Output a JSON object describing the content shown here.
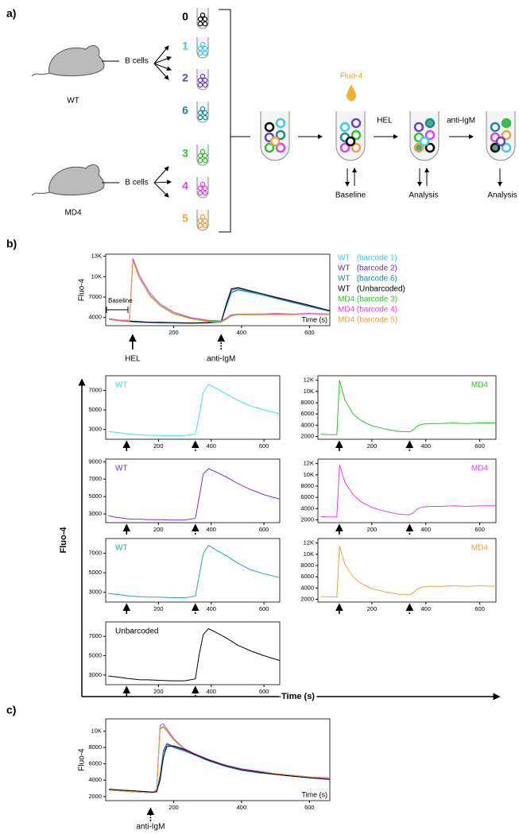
{
  "panel_labels": [
    "a)",
    "b)",
    "c)"
  ],
  "diagram": {
    "mice": [
      {
        "label": "WT",
        "cells": "B cells"
      },
      {
        "label": "MD4",
        "cells": "B cells"
      }
    ],
    "barcodes": [
      {
        "label": "0",
        "color": "#000000"
      },
      {
        "label": "1",
        "color": "#3fc8ee"
      },
      {
        "label": "2",
        "color": "#6a3fc8"
      },
      {
        "label": "6",
        "color": "#1a8a96"
      },
      {
        "label": "3",
        "color": "#2ec22e"
      },
      {
        "label": "4",
        "color": "#e83ee8"
      },
      {
        "label": "5",
        "color": "#f0a040"
      }
    ],
    "dye": "Fluo-4",
    "stimuli": [
      "HEL",
      "anti-IgM"
    ],
    "readouts": [
      "Baseline",
      "Analysis",
      "Analysis"
    ]
  },
  "panel_b_axes": {
    "ylabel": "Fluo-4",
    "xlabel": "Time (s)"
  },
  "chart_data": [
    {
      "type": "line",
      "xlabel": "Time (s)",
      "ylabel": "Fluo-4",
      "annotations": [
        "Baseline",
        "HEL",
        "anti-IgM"
      ],
      "x": [
        10,
        40,
        70,
        80,
        100,
        130,
        160,
        200,
        250,
        300,
        340,
        355,
        370,
        390,
        420,
        460,
        500,
        550,
        600,
        660
      ],
      "xlim": [
        0,
        660
      ],
      "xticks": [
        200,
        400,
        600
      ],
      "ylim": [
        2800,
        13300
      ],
      "yticks": [
        4000,
        7000,
        {
          "value": 10000,
          "label": "10K"
        },
        {
          "value": 13000,
          "label": "13K"
        }
      ],
      "series": [
        {
          "name": "WT   (barcode 1)",
          "color": "#3fc8ee",
          "values": [
            3700,
            3500,
            3400,
            3350,
            3300,
            3250,
            3200,
            3200,
            3150,
            3200,
            3300,
            5500,
            7600,
            8000,
            7700,
            7300,
            6800,
            6200,
            5600,
            4900
          ]
        },
        {
          "name": "WT   (barcode 2)",
          "color": "#6a2fc0",
          "values": [
            3700,
            3500,
            3400,
            3350,
            3300,
            3250,
            3200,
            3200,
            3150,
            3200,
            3300,
            5800,
            8000,
            8300,
            7900,
            7400,
            6900,
            6300,
            5700,
            5000
          ]
        },
        {
          "name": "WT   (barcode 6)",
          "color": "#1a8a96",
          "values": [
            3700,
            3500,
            3450,
            3400,
            3350,
            3300,
            3250,
            3200,
            3200,
            3250,
            3350,
            5600,
            7700,
            8100,
            7800,
            7400,
            6800,
            6200,
            5600,
            4900
          ]
        },
        {
          "name": "WT   (Unbarcoded)",
          "color": "#000000",
          "values": [
            3800,
            3600,
            3500,
            3450,
            3400,
            3300,
            3300,
            3250,
            3200,
            3250,
            3400,
            6000,
            8200,
            8400,
            8000,
            7500,
            7000,
            6400,
            5800,
            5000
          ]
        },
        {
          "name": "MD4 (barcode 3)",
          "color": "#2ec22e",
          "values": [
            3700,
            3500,
            3500,
            12500,
            9800,
            7300,
            5800,
            4600,
            3900,
            3500,
            3400,
            3800,
            4300,
            4400,
            4400,
            4400,
            4500,
            4400,
            4500,
            4400
          ]
        },
        {
          "name": "MD4 (barcode 4)",
          "color": "#e83ee8",
          "values": [
            3800,
            3600,
            3600,
            12700,
            10100,
            7600,
            6000,
            4800,
            4000,
            3600,
            3500,
            3900,
            4400,
            4500,
            4500,
            4500,
            4600,
            4500,
            4600,
            4500
          ]
        },
        {
          "name": "MD4 (barcode 5)",
          "color": "#f0a040",
          "values": [
            3700,
            3500,
            3500,
            12300,
            9700,
            7200,
            5700,
            4500,
            3800,
            3400,
            3300,
            3700,
            4200,
            4400,
            4400,
            4400,
            4400,
            4400,
            4500,
            4400
          ]
        }
      ]
    },
    {
      "type": "line",
      "x": [
        10,
        40,
        70,
        80,
        100,
        130,
        160,
        200,
        250,
        300,
        340,
        355,
        370,
        390,
        420,
        460,
        500,
        550,
        600,
        660
      ],
      "xlim": [
        0,
        660
      ],
      "xticks": [
        200,
        400,
        600
      ],
      "ylim": [
        2000,
        8500
      ],
      "yticks": [
        3000,
        5000,
        7000
      ],
      "series": [
        {
          "name": "WT",
          "color": "#3fe0f0",
          "values": [
            2800,
            2700,
            2600,
            2550,
            2500,
            2450,
            2400,
            2400,
            2350,
            2400,
            2500,
            4500,
            6800,
            7600,
            7200,
            6600,
            6000,
            5400,
            5000,
            4600
          ]
        }
      ]
    },
    {
      "type": "line",
      "x": [
        10,
        40,
        70,
        80,
        100,
        130,
        160,
        200,
        250,
        300,
        340,
        355,
        370,
        390,
        420,
        460,
        500,
        550,
        600,
        660
      ],
      "xlim": [
        0,
        660
      ],
      "xticks": [
        200,
        400,
        600
      ],
      "ylim": [
        2000,
        9300
      ],
      "yticks": [
        3000,
        5000,
        7000,
        9000
      ],
      "series": [
        {
          "name": "WT",
          "color": "#7a2fe0",
          "values": [
            2800,
            2600,
            2500,
            2450,
            2400,
            2400,
            2350,
            2350,
            2300,
            2300,
            2500,
            5000,
            7600,
            8200,
            7800,
            7200,
            6500,
            5800,
            5200,
            4700
          ]
        }
      ]
    },
    {
      "type": "line",
      "x": [
        10,
        40,
        70,
        80,
        100,
        130,
        160,
        200,
        250,
        300,
        340,
        355,
        370,
        390,
        420,
        460,
        500,
        550,
        600,
        660
      ],
      "xlim": [
        0,
        660
      ],
      "xticks": [
        200,
        400,
        600
      ],
      "ylim": [
        2000,
        8500
      ],
      "yticks": [
        3000,
        5000,
        7000
      ],
      "series": [
        {
          "name": "WT",
          "color": "#20a8a8",
          "values": [
            2900,
            2800,
            2700,
            2650,
            2600,
            2550,
            2500,
            2500,
            2450,
            2450,
            2600,
            4800,
            7000,
            7800,
            7300,
            6700,
            6000,
            5300,
            4900,
            4500
          ]
        }
      ]
    },
    {
      "type": "line",
      "x": [
        10,
        40,
        70,
        80,
        100,
        130,
        160,
        200,
        250,
        300,
        340,
        355,
        370,
        390,
        420,
        460,
        500,
        550,
        600,
        660
      ],
      "xlim": [
        0,
        660
      ],
      "xticks": [
        200,
        400,
        600
      ],
      "ylim": [
        2000,
        8500
      ],
      "yticks": [
        3000,
        5000,
        7000
      ],
      "series": [
        {
          "name": "Unbarcoded",
          "color": "#000000",
          "values": [
            2900,
            2800,
            2700,
            2650,
            2600,
            2500,
            2500,
            2450,
            2400,
            2400,
            2600,
            5200,
            7200,
            7800,
            7400,
            6800,
            6100,
            5500,
            5000,
            4500
          ]
        }
      ]
    },
    {
      "type": "line",
      "x": [
        10,
        40,
        70,
        80,
        100,
        130,
        160,
        200,
        250,
        300,
        340,
        355,
        370,
        390,
        420,
        460,
        500,
        550,
        600,
        660
      ],
      "xlim": [
        0,
        660
      ],
      "xticks": [
        200,
        400,
        600
      ],
      "ylim": [
        1500,
        12800
      ],
      "yticks": [
        2000,
        4000,
        6000,
        8000,
        {
          "value": 10000,
          "label": "10K"
        },
        {
          "value": 12000,
          "label": "12K"
        }
      ],
      "series": [
        {
          "name": "MD4",
          "color": "#2ec22e",
          "values": [
            2400,
            2300,
            2300,
            12000,
            8500,
            6000,
            4800,
            3900,
            3300,
            2900,
            2800,
            3200,
            3900,
            4200,
            4300,
            4300,
            4400,
            4300,
            4400,
            4400
          ]
        }
      ]
    },
    {
      "type": "line",
      "x": [
        10,
        40,
        70,
        80,
        100,
        130,
        160,
        200,
        250,
        300,
        340,
        355,
        370,
        390,
        420,
        460,
        500,
        550,
        600,
        660
      ],
      "xlim": [
        0,
        660
      ],
      "xticks": [
        200,
        400,
        600
      ],
      "ylim": [
        1500,
        12800
      ],
      "yticks": [
        2000,
        4000,
        6000,
        8000,
        {
          "value": 10000,
          "label": "10K"
        },
        {
          "value": 12000,
          "label": "12K"
        }
      ],
      "series": [
        {
          "name": "MD4",
          "color": "#e83ee8",
          "values": [
            2600,
            2500,
            2500,
            11800,
            8700,
            6500,
            5200,
            4200,
            3500,
            3000,
            2900,
            3300,
            4000,
            4300,
            4400,
            4400,
            4500,
            4400,
            4500,
            4500
          ]
        }
      ]
    },
    {
      "type": "line",
      "x": [
        10,
        40,
        70,
        80,
        100,
        130,
        160,
        200,
        250,
        300,
        340,
        355,
        370,
        390,
        420,
        460,
        500,
        550,
        600,
        660
      ],
      "xlim": [
        0,
        660
      ],
      "xticks": [
        200,
        400,
        600
      ],
      "ylim": [
        1500,
        12800
      ],
      "yticks": [
        2000,
        4000,
        6000,
        8000,
        {
          "value": 10000,
          "label": "10K"
        },
        {
          "value": 12000,
          "label": "12K"
        }
      ],
      "series": [
        {
          "name": "MD4",
          "color": "#f0a040",
          "values": [
            2500,
            2400,
            2400,
            11500,
            8200,
            6000,
            4800,
            3900,
            3300,
            2900,
            2800,
            3200,
            3900,
            4200,
            4300,
            4300,
            4400,
            4300,
            4400,
            4300
          ]
        }
      ]
    },
    {
      "type": "line",
      "xlabel": "Time (s)",
      "ylabel": "Fluo-4",
      "annotations": [
        "anti-IgM"
      ],
      "x": [
        10,
        40,
        80,
        120,
        140,
        150,
        160,
        170,
        180,
        200,
        230,
        260,
        300,
        350,
        400,
        450,
        500,
        550,
        600,
        660
      ],
      "xlim": [
        0,
        660
      ],
      "xticks": [
        200,
        400,
        600
      ],
      "ylim": [
        1500,
        11500
      ],
      "yticks": [
        2000,
        4000,
        6000,
        8000,
        {
          "value": 10000,
          "label": "10K"
        }
      ],
      "series": [
        {
          "color": "#3fc8ee",
          "values": [
            2800,
            2700,
            2600,
            2500,
            2500,
            2600,
            4300,
            7300,
            8300,
            8000,
            7600,
            7100,
            6400,
            5700,
            5200,
            4900,
            4700,
            4500,
            4300,
            4100
          ]
        },
        {
          "color": "#6a2fc0",
          "values": [
            2800,
            2700,
            2600,
            2500,
            2500,
            2600,
            4600,
            7600,
            8500,
            8100,
            7700,
            7200,
            6500,
            5800,
            5300,
            5000,
            4700,
            4500,
            4300,
            4200
          ]
        },
        {
          "color": "#1a8a96",
          "values": [
            2900,
            2800,
            2700,
            2600,
            2550,
            2600,
            4400,
            7400,
            8400,
            8000,
            7600,
            7100,
            6400,
            5700,
            5200,
            4900,
            4700,
            4500,
            4300,
            4100
          ]
        },
        {
          "color": "#2ec22e",
          "values": [
            2800,
            2700,
            2600,
            2500,
            2500,
            2800,
            10300,
            10600,
            10100,
            9000,
            7800,
            7200,
            6500,
            5800,
            5300,
            5000,
            4800,
            4600,
            4400,
            4200
          ]
        },
        {
          "color": "#e83ee8",
          "values": [
            2800,
            2700,
            2600,
            2500,
            2500,
            2900,
            10700,
            10900,
            10300,
            9100,
            7900,
            7300,
            6600,
            5900,
            5400,
            5100,
            4800,
            4600,
            4400,
            4300
          ]
        },
        {
          "color": "#f0a040",
          "values": [
            2800,
            2700,
            2600,
            2500,
            2500,
            2800,
            10200,
            10500,
            10000,
            8900,
            7800,
            7200,
            6500,
            5800,
            5300,
            5000,
            4800,
            4600,
            4400,
            4200
          ]
        },
        {
          "color": "#000000",
          "values": [
            2900,
            2800,
            2700,
            2600,
            2550,
            2600,
            4000,
            6800,
            8100,
            8200,
            7800,
            7200,
            6500,
            5800,
            5300,
            5000,
            4700,
            4500,
            4300,
            4100
          ]
        }
      ]
    }
  ]
}
